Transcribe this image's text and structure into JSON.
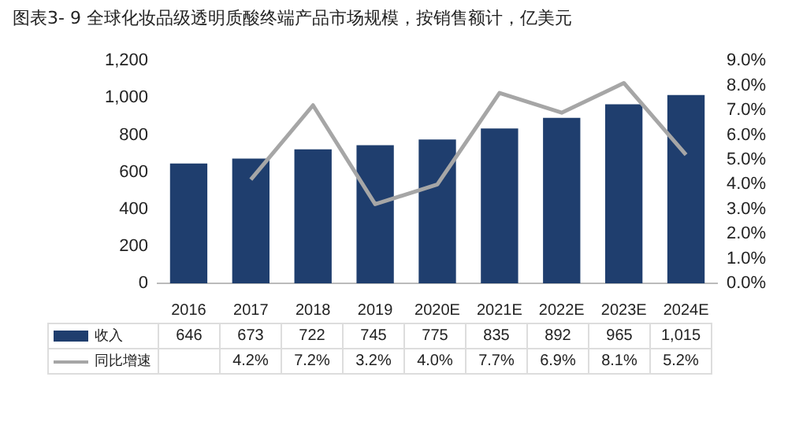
{
  "chart_data": {
    "type": "bar",
    "title": "图表3- 9 全球化妆品级透明质酸终端产品市场规模，按销售额计，亿美元",
    "categories": [
      "2016",
      "2017",
      "2018",
      "2019",
      "2020E",
      "2021E",
      "2022E",
      "2023E",
      "2024E"
    ],
    "series": [
      {
        "name": "收入",
        "color": "#1f3e6e",
        "values": [
          646,
          673,
          722,
          745,
          775,
          835,
          892,
          965,
          1015
        ],
        "value_labels": [
          "646",
          "673",
          "722",
          "745",
          "775",
          "835",
          "892",
          "965",
          "1,015"
        ]
      },
      {
        "name": "同比增速",
        "type": "line",
        "axis": "y2",
        "color": "#a6a6a6",
        "values": [
          null,
          4.2,
          7.2,
          3.2,
          4.0,
          7.7,
          6.9,
          8.1,
          5.2
        ],
        "value_labels": [
          null,
          "4.2%",
          "7.2%",
          "3.2%",
          "4.0%",
          "7.7%",
          "6.9%",
          "8.1%",
          "5.2%"
        ]
      }
    ],
    "ylim": [
      0,
      1200
    ],
    "yticks": [
      0,
      200,
      400,
      600,
      800,
      {
        "value": 1000,
        "label": "1,000"
      },
      {
        "value": 1200,
        "label": "1,200"
      }
    ],
    "y2lim": [
      0,
      9
    ],
    "y2ticks": [
      {
        "value": 0,
        "label": "0.0%"
      },
      {
        "value": 1,
        "label": "1.0%"
      },
      {
        "value": 2,
        "label": "2.0%"
      },
      {
        "value": 3,
        "label": "3.0%"
      },
      {
        "value": 4,
        "label": "4.0%"
      },
      {
        "value": 5,
        "label": "5.0%"
      },
      {
        "value": 6,
        "label": "6.0%"
      },
      {
        "value": 7,
        "label": "7.0%"
      },
      {
        "value": 8,
        "label": "8.0%"
      },
      {
        "value": 9,
        "label": "9.0%"
      }
    ],
    "legend": "bottom",
    "marker": "none",
    "line_style": "solid"
  }
}
